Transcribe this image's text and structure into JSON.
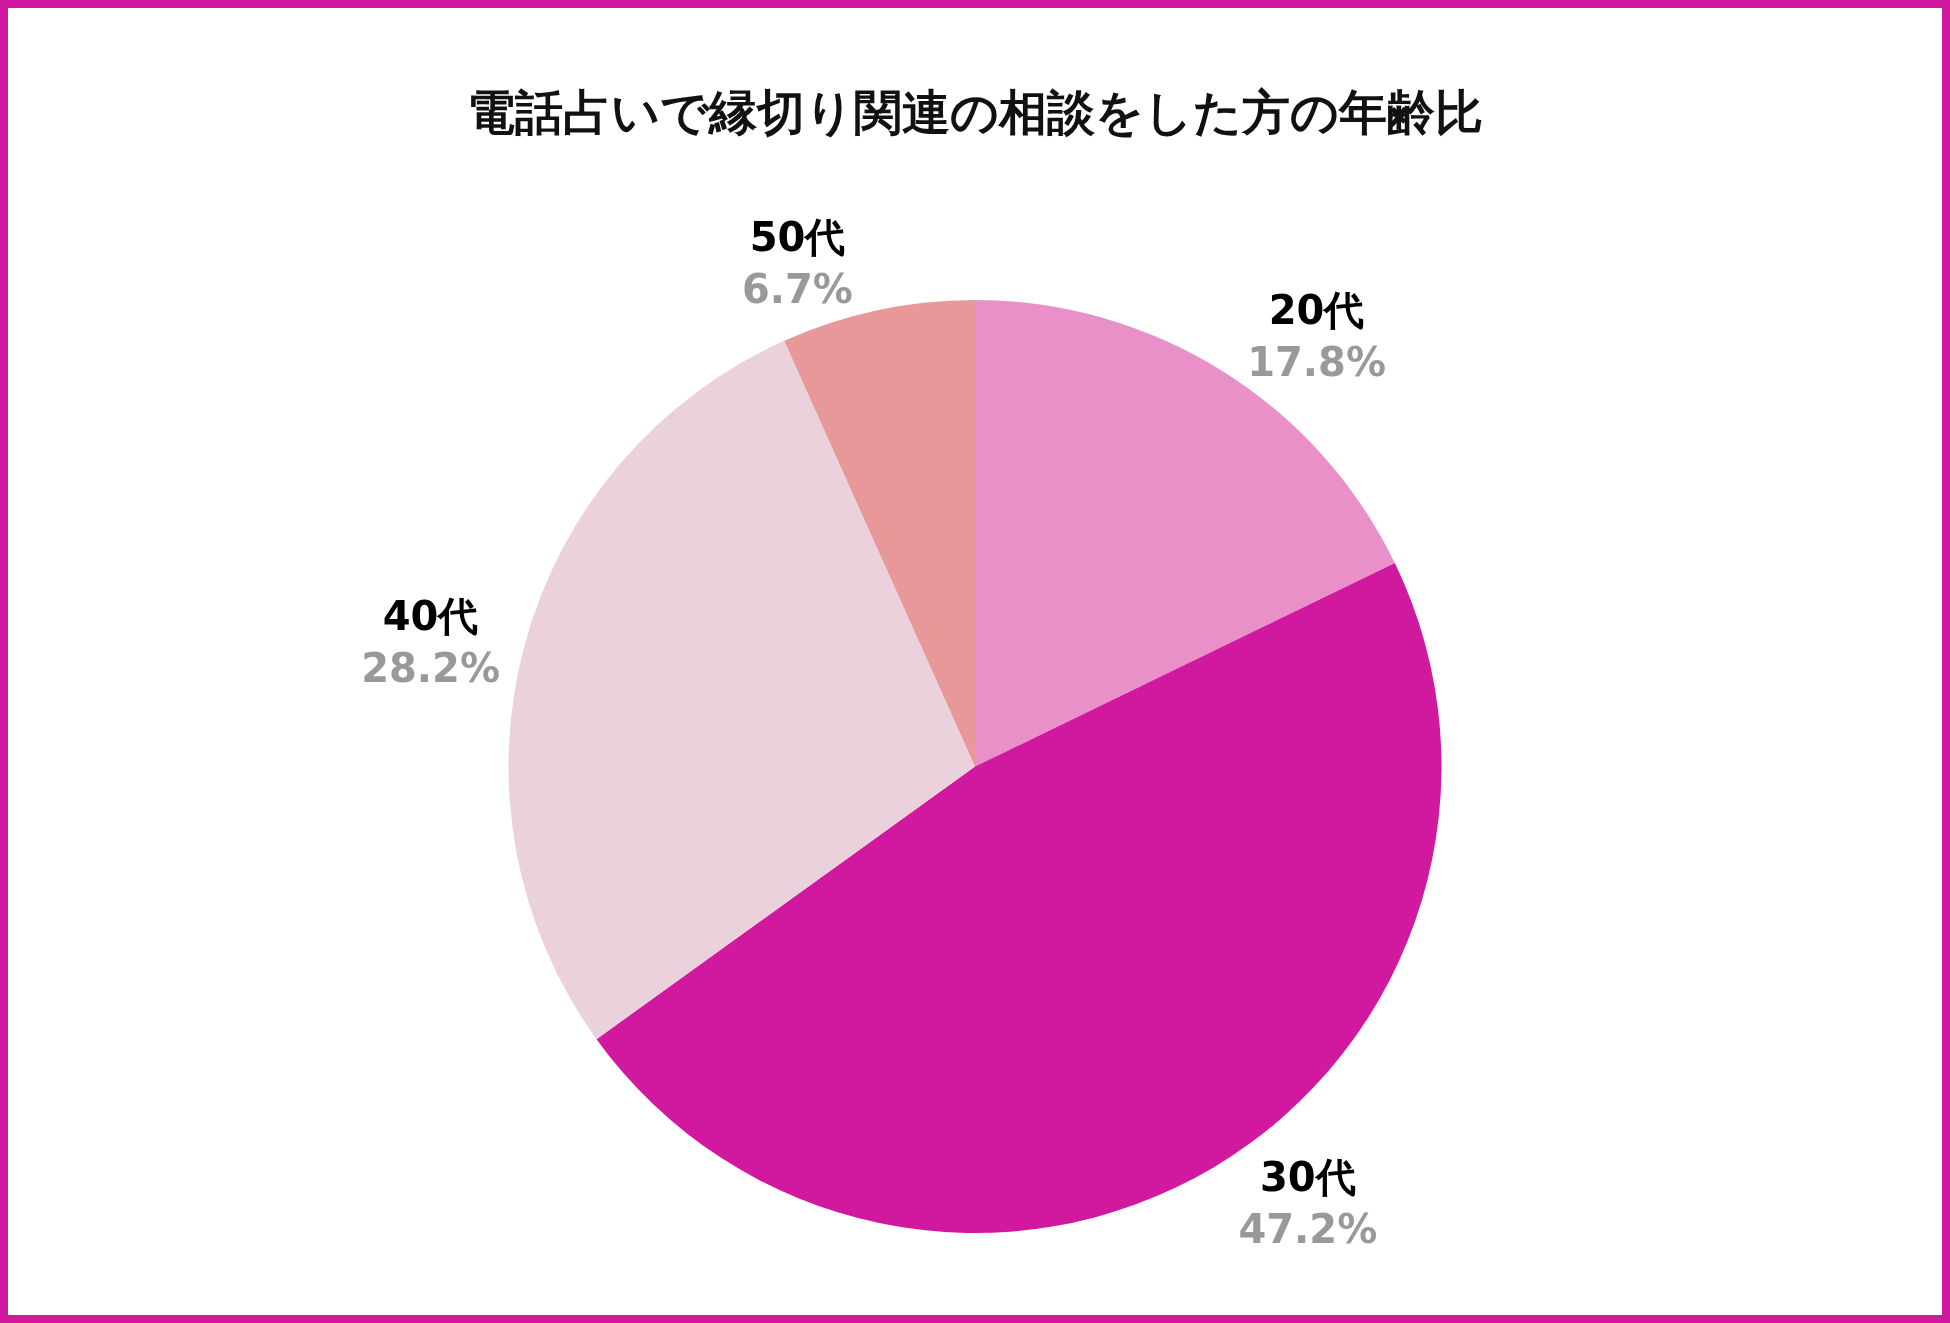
{
  "chart_data": {
    "type": "pie",
    "title": "電話占いで縁切り関連の相談をした方の年齢比",
    "categories": [
      "20代",
      "30代",
      "40代",
      "50代"
    ],
    "values": [
      17.8,
      47.2,
      28.2,
      6.7
    ],
    "value_labels": [
      "17.8%",
      "47.2%",
      "28.2%",
      "6.7%"
    ],
    "colors": [
      "#ea90c9",
      "#d0199f",
      "#ebd1dc",
      "#e89898"
    ],
    "legend": false
  }
}
